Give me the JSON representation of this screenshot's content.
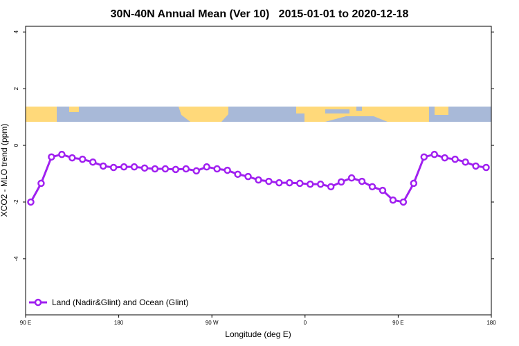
{
  "chart_data": {
    "type": "line",
    "title": "30N-40N Annual Mean (Ver 10)   2015-01-01 to 2020-12-18",
    "x_label": "Longitude (deg E)",
    "y_label": "XCO2 - MLO trend (ppm)",
    "xlim": [
      90,
      540
    ],
    "xticks": [
      {
        "value": 90,
        "label": "90 E"
      },
      180,
      {
        "value": 270,
        "label": "90 W"
      },
      {
        "value": 360,
        "label": "0"
      },
      {
        "value": 450,
        "label": "90 E"
      },
      {
        "value": 540,
        "label": "180"
      }
    ],
    "ylim": [
      -5.98,
      4.2
    ],
    "yticks": [
      -4,
      -2,
      0,
      2,
      4
    ],
    "legend": "bottom-left",
    "x": [
      95,
      105,
      115,
      125,
      135,
      145,
      155,
      165,
      175,
      185,
      195,
      205,
      215,
      225,
      235,
      245,
      255,
      265,
      275,
      285,
      295,
      305,
      315,
      325,
      335,
      345,
      355,
      365,
      375,
      385,
      395,
      405,
      415,
      425,
      435,
      445,
      455,
      465,
      475,
      485,
      495,
      505,
      515,
      525,
      535
    ],
    "series": [
      {
        "name": "Land (Nadir&Glint) and Ocean (Glint)",
        "color": "#a020f0",
        "values": [
          -2.0,
          -1.34,
          -0.41,
          -0.32,
          -0.44,
          -0.49,
          -0.59,
          -0.73,
          -0.78,
          -0.76,
          -0.76,
          -0.8,
          -0.83,
          -0.83,
          -0.85,
          -0.83,
          -0.9,
          -0.76,
          -0.83,
          -0.88,
          -1.02,
          -1.1,
          -1.22,
          -1.27,
          -1.32,
          -1.32,
          -1.34,
          -1.37,
          -1.37,
          -1.46,
          -1.29,
          -1.15,
          -1.27,
          -1.46,
          -1.59,
          -1.93,
          -2.0,
          -1.34,
          -0.41,
          -0.32,
          -0.44,
          -0.49,
          -0.59,
          -0.73,
          -0.78
        ]
      }
    ]
  }
}
